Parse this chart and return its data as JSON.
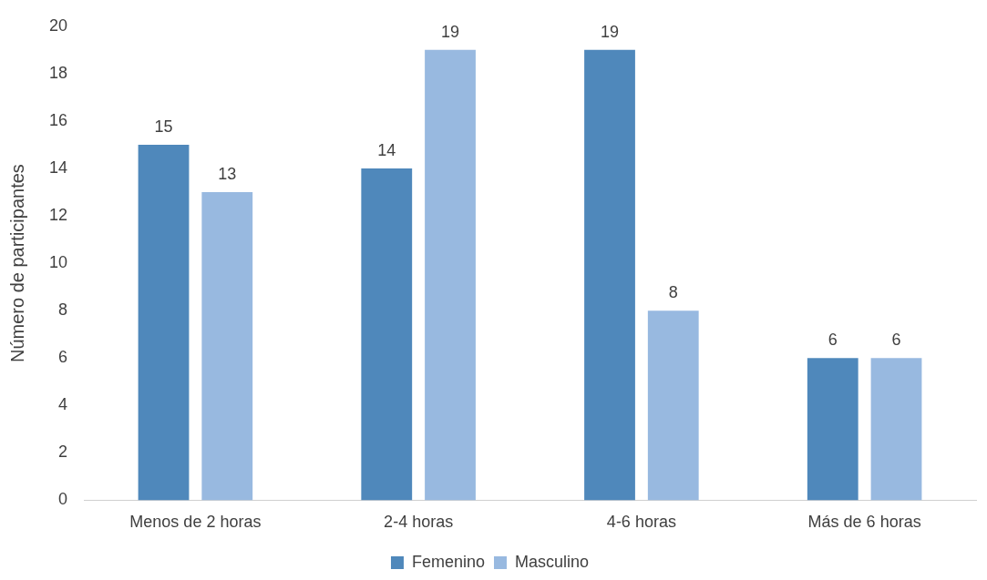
{
  "chart_data": {
    "type": "bar",
    "ylabel": "Número de participantes",
    "categories": [
      "Menos de 2 horas",
      "2-4 horas",
      "4-6 horas",
      "Más de 6 horas"
    ],
    "series": [
      {
        "name": "Femenino",
        "color": "#4f88bb",
        "values": [
          15,
          14,
          19,
          6
        ]
      },
      {
        "name": "Masculino",
        "color": "#98b9e0",
        "values": [
          13,
          19,
          8,
          6
        ]
      }
    ],
    "ylim": [
      0,
      20
    ],
    "yticks": [
      0,
      2,
      4,
      6,
      8,
      10,
      12,
      14,
      16,
      18,
      20
    ],
    "grid": false,
    "legend": "bottom",
    "data_labels": true
  }
}
